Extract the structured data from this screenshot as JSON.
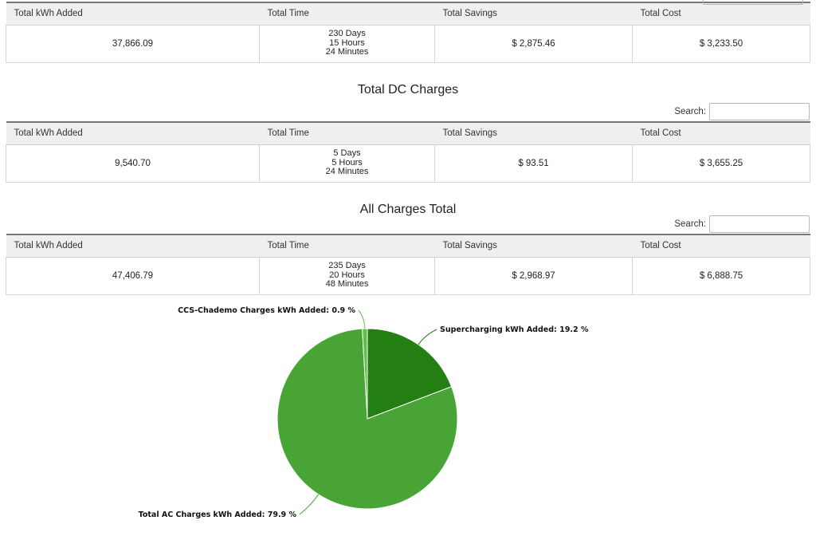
{
  "columns": [
    "Total kWh Added",
    "Total Time",
    "Total Savings",
    "Total Cost"
  ],
  "search_label": "Search:",
  "ac_table": {
    "kwh": "37,866.09",
    "time": [
      "230 Days",
      "15 Hours",
      "24 Minutes"
    ],
    "savings": "$ 2,875.46",
    "cost": "$ 3,233.50"
  },
  "dc_section": {
    "title": "Total DC Charges",
    "kwh": "9,540.70",
    "time": [
      "5 Days",
      "5 Hours",
      "24 Minutes"
    ],
    "savings": "$ 93.51",
    "cost": "$ 3,655.25"
  },
  "all_section": {
    "title": "All Charges Total",
    "kwh": "47,406.79",
    "time": [
      "235 Days",
      "20 Hours",
      "48 Minutes"
    ],
    "savings": "$ 2,968.97",
    "cost": "$ 6,888.75"
  },
  "chart_data": {
    "type": "pie",
    "slices": [
      {
        "label": "Supercharging kWh Added: 19.2 %",
        "value": 19.2,
        "color": "#237f11"
      },
      {
        "label": "Total AC Charges kWh Added: 79.9 %",
        "value": 79.9,
        "color": "#48a535"
      },
      {
        "label": "CCS-Chademo Charges kWh Added: 0.9 %",
        "value": 0.9,
        "color": "#5fbf4b"
      }
    ]
  }
}
